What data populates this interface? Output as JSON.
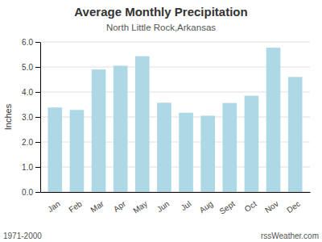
{
  "chart_data": {
    "type": "bar",
    "title": "Average Monthly Precipitation",
    "subtitle": "North Little Rock,Arkansas",
    "ylabel": "Inches",
    "categories": [
      "Jan",
      "Feb",
      "Mar",
      "Apr",
      "May",
      "Jun",
      "Jul",
      "Aug",
      "Sept",
      "Oct",
      "Nov",
      "Dec"
    ],
    "values": [
      3.38,
      3.28,
      4.9,
      5.05,
      5.43,
      3.57,
      3.17,
      3.05,
      3.56,
      3.85,
      5.77,
      4.6
    ],
    "color": "#ADD8E6",
    "ylim": [
      0.0,
      6.0
    ],
    "yticks": [
      {
        "value": 0.0,
        "label": "0.0"
      },
      {
        "value": 1.0,
        "label": "1.0"
      },
      {
        "value": 2.0,
        "label": "2.0"
      },
      {
        "value": 3.0,
        "label": "3.0"
      },
      {
        "value": 4.0,
        "label": "4.0"
      },
      {
        "value": 5.0,
        "label": "5.0"
      },
      {
        "value": 6.0,
        "label": "6.0"
      }
    ],
    "grid": true,
    "annotations": [
      "1971-2000",
      "rssWeather.com"
    ]
  }
}
